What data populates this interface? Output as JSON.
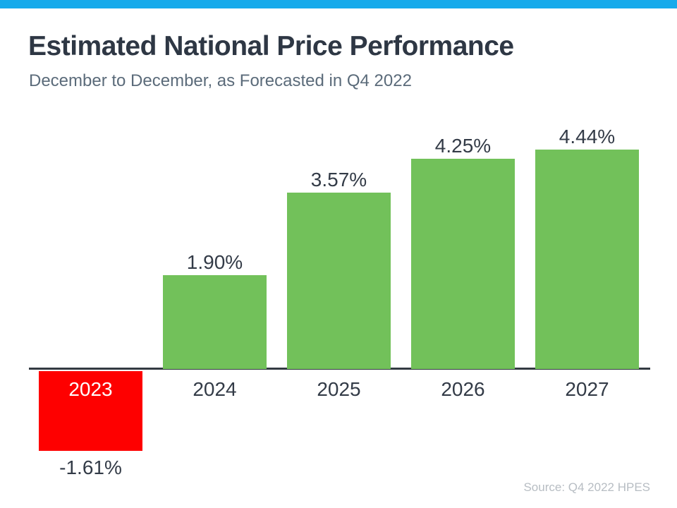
{
  "header": {
    "title": "Estimated National Price Performance",
    "subtitle": "December to December, as Forecasted in Q4 2022"
  },
  "footer": {
    "source": "Source: Q4 2022 HPES"
  },
  "colors": {
    "accent_strip": "#16aaeb",
    "positive_bar": "#72c15a",
    "negative_bar": "#fe0000",
    "title_text": "#2e3744",
    "subtitle_text": "#5b6b7a",
    "label_text": "#333b47",
    "negative_year_text": "#ffffff",
    "axis_line": "#333a42",
    "source_text": "#b7bdc3"
  },
  "chart_data": {
    "type": "bar",
    "title": "Estimated National Price Performance",
    "subtitle": "December to December, as Forecasted in Q4 2022",
    "categories": [
      "2023",
      "2024",
      "2025",
      "2026",
      "2027"
    ],
    "values": [
      -1.61,
      1.9,
      3.57,
      4.25,
      4.44
    ],
    "value_labels": [
      "-1.61%",
      "1.90%",
      "3.57%",
      "4.25%",
      "4.44%"
    ],
    "bar_colors": [
      "#fe0000",
      "#72c15a",
      "#72c15a",
      "#72c15a",
      "#72c15a"
    ],
    "ylim": [
      -2,
      5
    ],
    "xlabel": "",
    "ylabel": "",
    "grid": false,
    "legend": false,
    "annotations": [
      "Source: Q4 2022 HPES"
    ]
  }
}
